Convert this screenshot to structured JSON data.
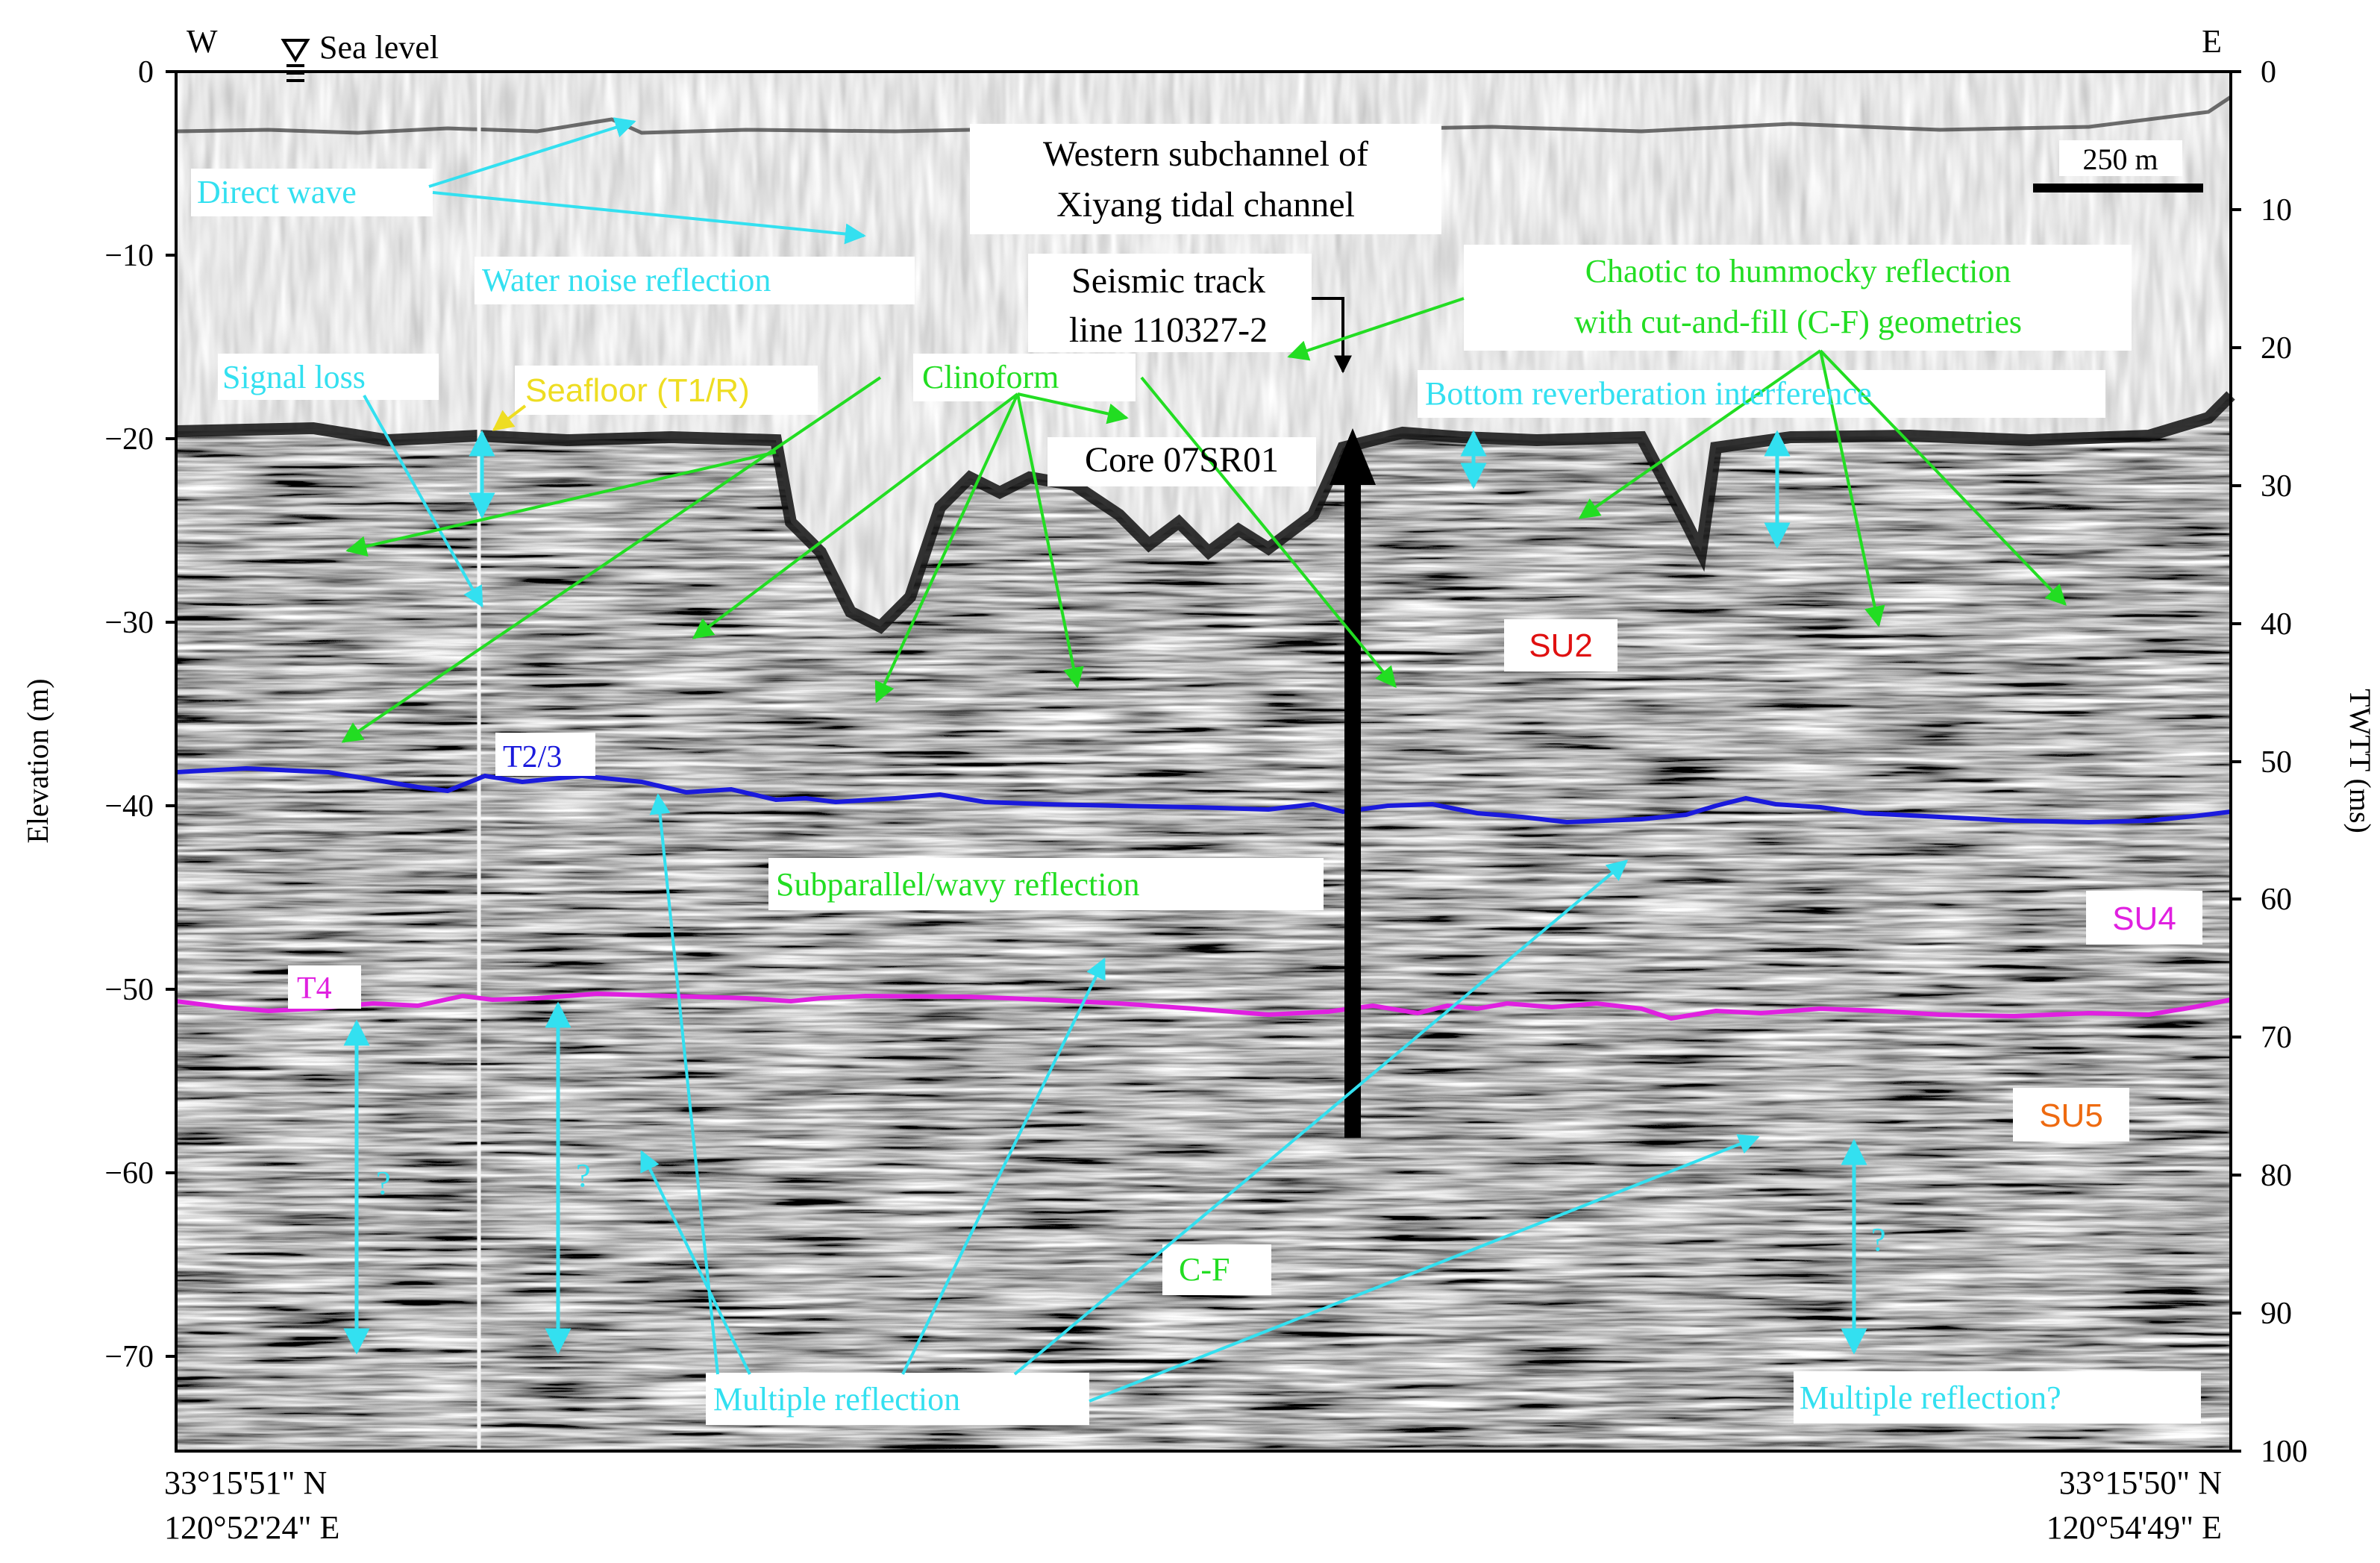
{
  "header": {
    "west": "W",
    "east": "E",
    "sea_level": "Sea level"
  },
  "axes": {
    "left_label": "Elevation (m)",
    "right_label": "TWTT (ms)",
    "left_ticks": [
      "0",
      "−10",
      "−20",
      "−30",
      "−40",
      "−50",
      "−60",
      "−70"
    ],
    "right_ticks": [
      "0",
      "10",
      "20",
      "30",
      "40",
      "50",
      "60",
      "70",
      "80",
      "90",
      "100"
    ]
  },
  "coordinates": {
    "left_lat": "33°15'51\" N",
    "left_lon": "120°52'24\" E",
    "right_lat": "33°15'50\" N",
    "right_lon": "120°54'49\" E"
  },
  "scale_bar": "250 m",
  "labels": {
    "channel_line1": "Western subchannel of",
    "channel_line2": "Xiyang tidal channel",
    "track_line1": "Seismic track",
    "track_line2": "line 110327-2",
    "core": "Core 07SR01",
    "direct_wave": "Direct wave",
    "water_noise": "Water noise reflection",
    "signal_loss": "Signal loss",
    "seafloor": "Seafloor (T1/R)",
    "clinoform": "Clinoform",
    "chaotic_line1": "Chaotic to hummocky reflection",
    "chaotic_line2": "with cut-and-fill (C-F) geometries",
    "bottom_reverb": "Bottom reverberation interference",
    "t23": "T2/3",
    "su2": "SU2",
    "subparallel": "Subparallel/wavy reflection",
    "su4": "SU4",
    "t4": "T4",
    "su5": "SU5",
    "cf": "C-F",
    "multiple": "Multiple reflection",
    "multiple_q": "Multiple reflection?",
    "q1": "?",
    "q2": "?",
    "q3": "?"
  },
  "colors": {
    "cyan": "#33e0f0",
    "green": "#22dd22",
    "blue_horizon": "#1a1adc",
    "magenta_horizon": "#e020e0",
    "su2_red": "#e01010",
    "su4_magenta": "#e020e0",
    "su5_orange": "#ee6a10",
    "seafloor_yellow": "#eedd22"
  }
}
